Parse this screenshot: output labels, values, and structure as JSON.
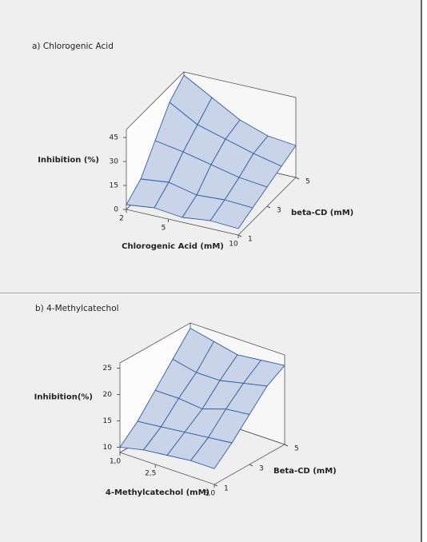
{
  "chart_data": [
    {
      "type": "surface",
      "title": "a) Chlorogenic Acid",
      "x_label": "Chlorogenic Acid (mM)",
      "y_label": "beta-CD (mM)",
      "z_label": "Inhibition (%)",
      "color": "#2e5fa7",
      "fill": "#c9d4e8",
      "x": [
        2,
        4,
        6,
        8,
        10
      ],
      "y": [
        1,
        2,
        3,
        4,
        5
      ],
      "z": [
        [
          3,
          5,
          3,
          5,
          4
        ],
        [
          10,
          12,
          8,
          9,
          8
        ],
        [
          25,
          22,
          18,
          14,
          12
        ],
        [
          40,
          30,
          25,
          20,
          16
        ],
        [
          48,
          38,
          28,
          22,
          20
        ]
      ],
      "xlim": [
        2,
        10
      ],
      "ylim": [
        1,
        5
      ],
      "zlim": [
        0,
        50
      ],
      "xticks": [
        2,
        5,
        10
      ],
      "yticks": [
        1,
        3,
        5
      ],
      "zticks": [
        0,
        15,
        30,
        45
      ]
    },
    {
      "type": "surface",
      "title": "b) 4-Methylcatechol",
      "x_label": "4-Methylcatechol (mM)",
      "y_label": "Beta-CD (mM)",
      "z_label": "Inhibition(%)",
      "color": "#2e5fa7",
      "fill": "#c9d4e8",
      "x": [
        1,
        2,
        3,
        4,
        5
      ],
      "y": [
        1,
        2,
        3,
        4,
        5
      ],
      "z": [
        [
          10,
          11,
          11.5,
          12,
          12
        ],
        [
          13,
          13.5,
          14,
          14.5,
          15
        ],
        [
          17,
          17,
          16.5,
          18,
          18.5
        ],
        [
          21,
          20,
          20,
          21,
          22
        ],
        [
          25,
          24,
          23,
          23.5,
          24
        ]
      ],
      "xlim": [
        1,
        5
      ],
      "ylim": [
        1,
        5
      ],
      "zlim": [
        9,
        26
      ],
      "xticks": [
        {
          "value": 1,
          "label": "1,0"
        },
        {
          "value": 2.5,
          "label": "2,5"
        },
        {
          "value": 5,
          "label": "5,0"
        }
      ],
      "yticks": [
        1,
        3,
        5
      ],
      "zticks": [
        10,
        15,
        20,
        25
      ]
    }
  ]
}
